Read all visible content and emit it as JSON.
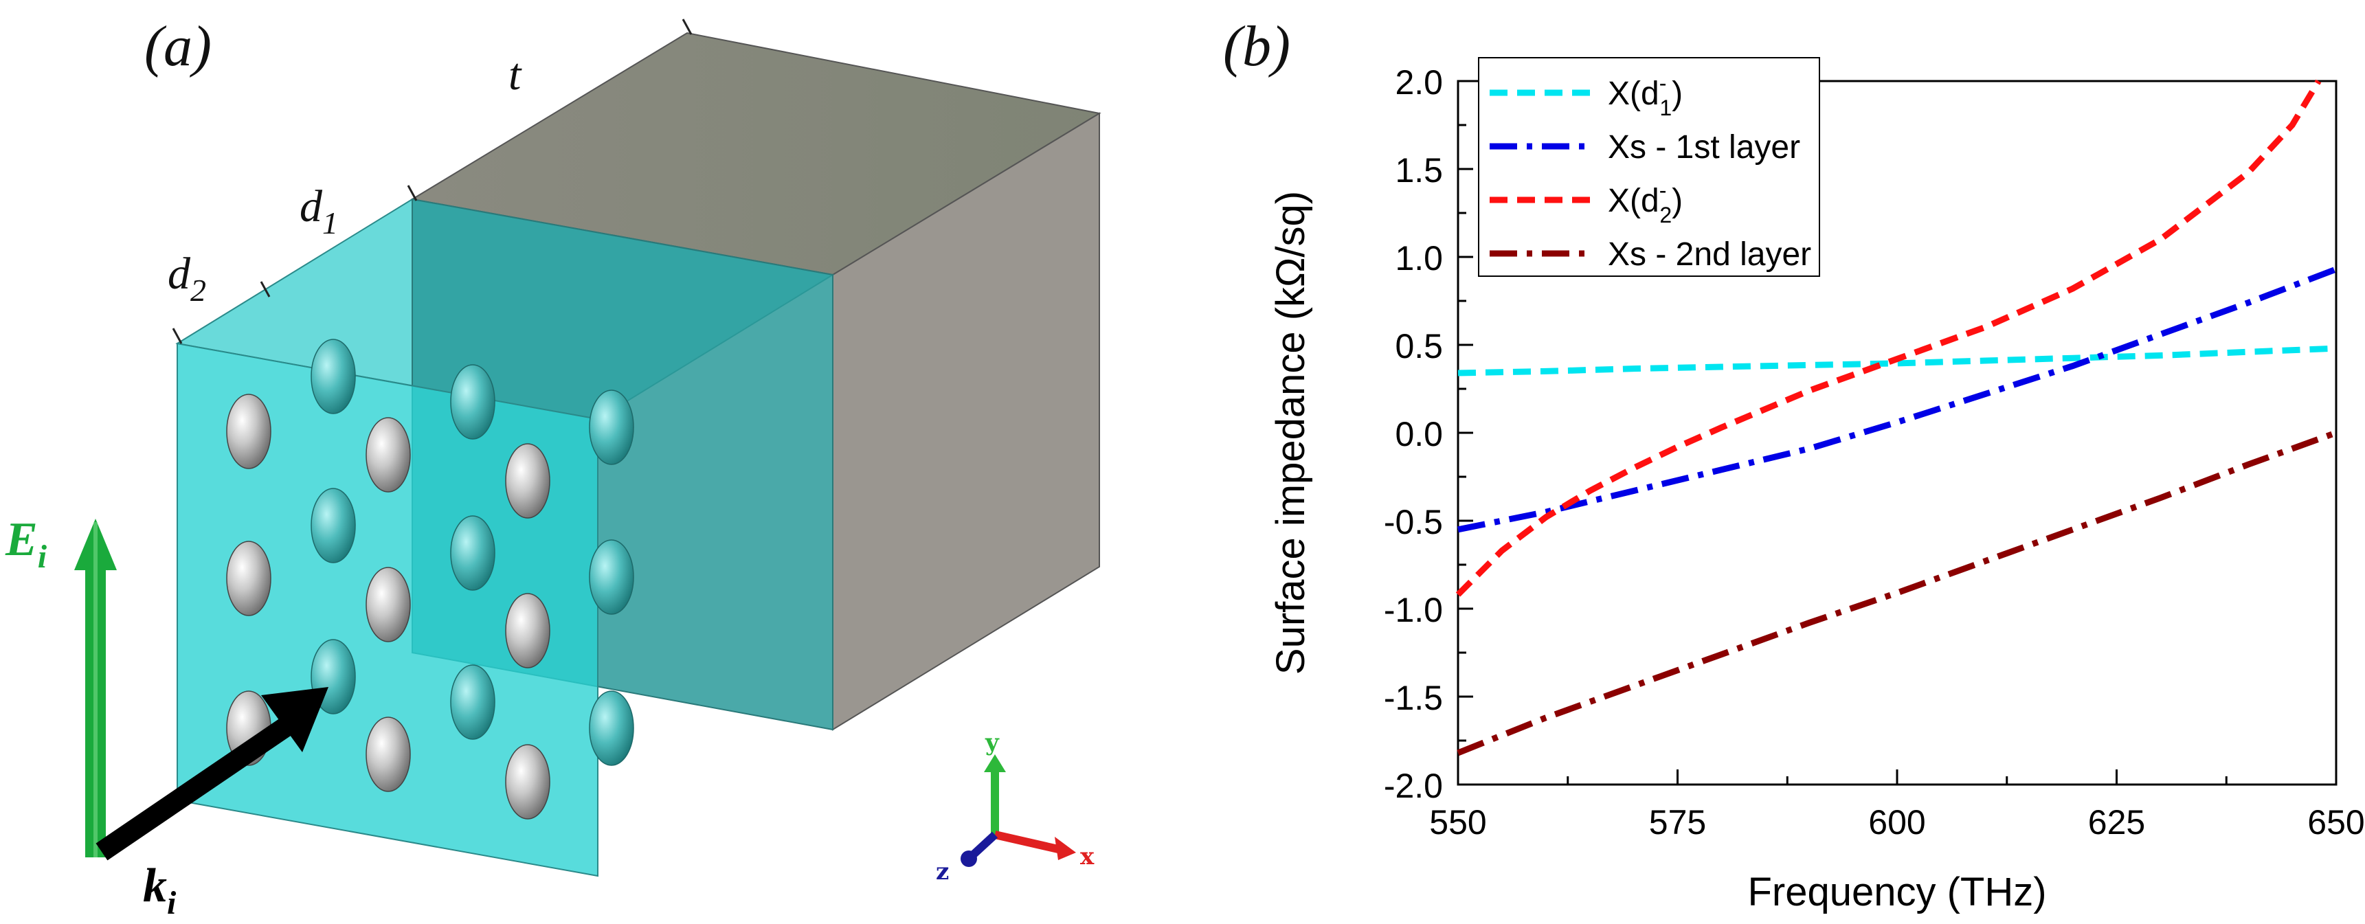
{
  "panel_a": {
    "label": "(a)",
    "dim_t": "t",
    "dim_d1": "d",
    "dim_d1_sub": "1",
    "dim_d2": "d",
    "dim_d2_sub": "2",
    "field_e": "E",
    "field_e_sub": "i",
    "wave_k": "k",
    "wave_k_sub": "i",
    "axis_y": "y",
    "axis_x": "x",
    "axis_z": "z",
    "colors": {
      "slab_front": "#2ccfcf",
      "slab_inner": "#2a9a9a",
      "block_top": "#8c8a7e",
      "block_side": "#9a9690",
      "e_arrow": "#1aaa3c",
      "k_arrow": "#000000"
    }
  },
  "panel_b": {
    "label": "(b)"
  },
  "chart_data": {
    "type": "line",
    "title": "",
    "xlabel": "Frequency (THz)",
    "ylabel": "Surface impedance (kΩ/sq)",
    "xlim": [
      550,
      650
    ],
    "ylim": [
      -2.0,
      2.0
    ],
    "xticks": [
      550,
      575,
      600,
      625,
      650
    ],
    "xtick_labels": [
      "550",
      "575",
      "600",
      "625",
      "650"
    ],
    "yticks": [
      2.0,
      1.5,
      1.0,
      0.5,
      0.0,
      -0.5,
      -1.0,
      -1.5,
      -2.0
    ],
    "ytick_labels": [
      "2.0",
      "1.5",
      "1.0",
      "0.5",
      "0.0",
      "-0.5",
      "-1.0",
      "-1.5",
      "-2.0"
    ],
    "legend_position": "top-left",
    "series": [
      {
        "name": "X(d1-)",
        "legend_main": "X(d",
        "legend_sup": "-",
        "legend_sub": "1",
        "legend_end": ")",
        "color": "#00e5f0",
        "style": "dash",
        "x": [
          550,
          560,
          570,
          580,
          590,
          600,
          610,
          620,
          630,
          640,
          650
        ],
        "y": [
          0.34,
          0.35,
          0.365,
          0.375,
          0.385,
          0.395,
          0.41,
          0.425,
          0.44,
          0.46,
          0.48
        ]
      },
      {
        "name": "Xs - 1st layer",
        "legend_main": "Xs - 1st layer",
        "color": "#0000e6",
        "style": "dashdot",
        "x": [
          550,
          560,
          570,
          580,
          590,
          600,
          610,
          620,
          630,
          640,
          650
        ],
        "y": [
          -0.55,
          -0.45,
          -0.33,
          -0.21,
          -0.09,
          0.06,
          0.22,
          0.38,
          0.56,
          0.74,
          0.93
        ]
      },
      {
        "name": "X(d2-)",
        "legend_main": "X(d",
        "legend_sup": "-",
        "legend_sub": "2",
        "legend_end": ")",
        "color": "#ff1010",
        "style": "dash",
        "x": [
          550,
          555,
          560,
          565,
          570,
          575,
          580,
          590,
          600,
          610,
          620,
          630,
          640,
          645,
          648
        ],
        "y": [
          -0.92,
          -0.67,
          -0.48,
          -0.33,
          -0.2,
          -0.08,
          0.03,
          0.24,
          0.42,
          0.6,
          0.82,
          1.1,
          1.48,
          1.75,
          2.0
        ]
      },
      {
        "name": "Xs - 2nd layer",
        "legend_main": "Xs - 2nd layer",
        "color": "#8b0000",
        "style": "dashdot",
        "x": [
          550,
          560,
          570,
          580,
          590,
          600,
          610,
          620,
          630,
          640,
          650
        ],
        "y": [
          -1.82,
          -1.62,
          -1.44,
          -1.26,
          -1.08,
          -0.91,
          -0.73,
          -0.55,
          -0.37,
          -0.18,
          0.0
        ]
      }
    ]
  }
}
